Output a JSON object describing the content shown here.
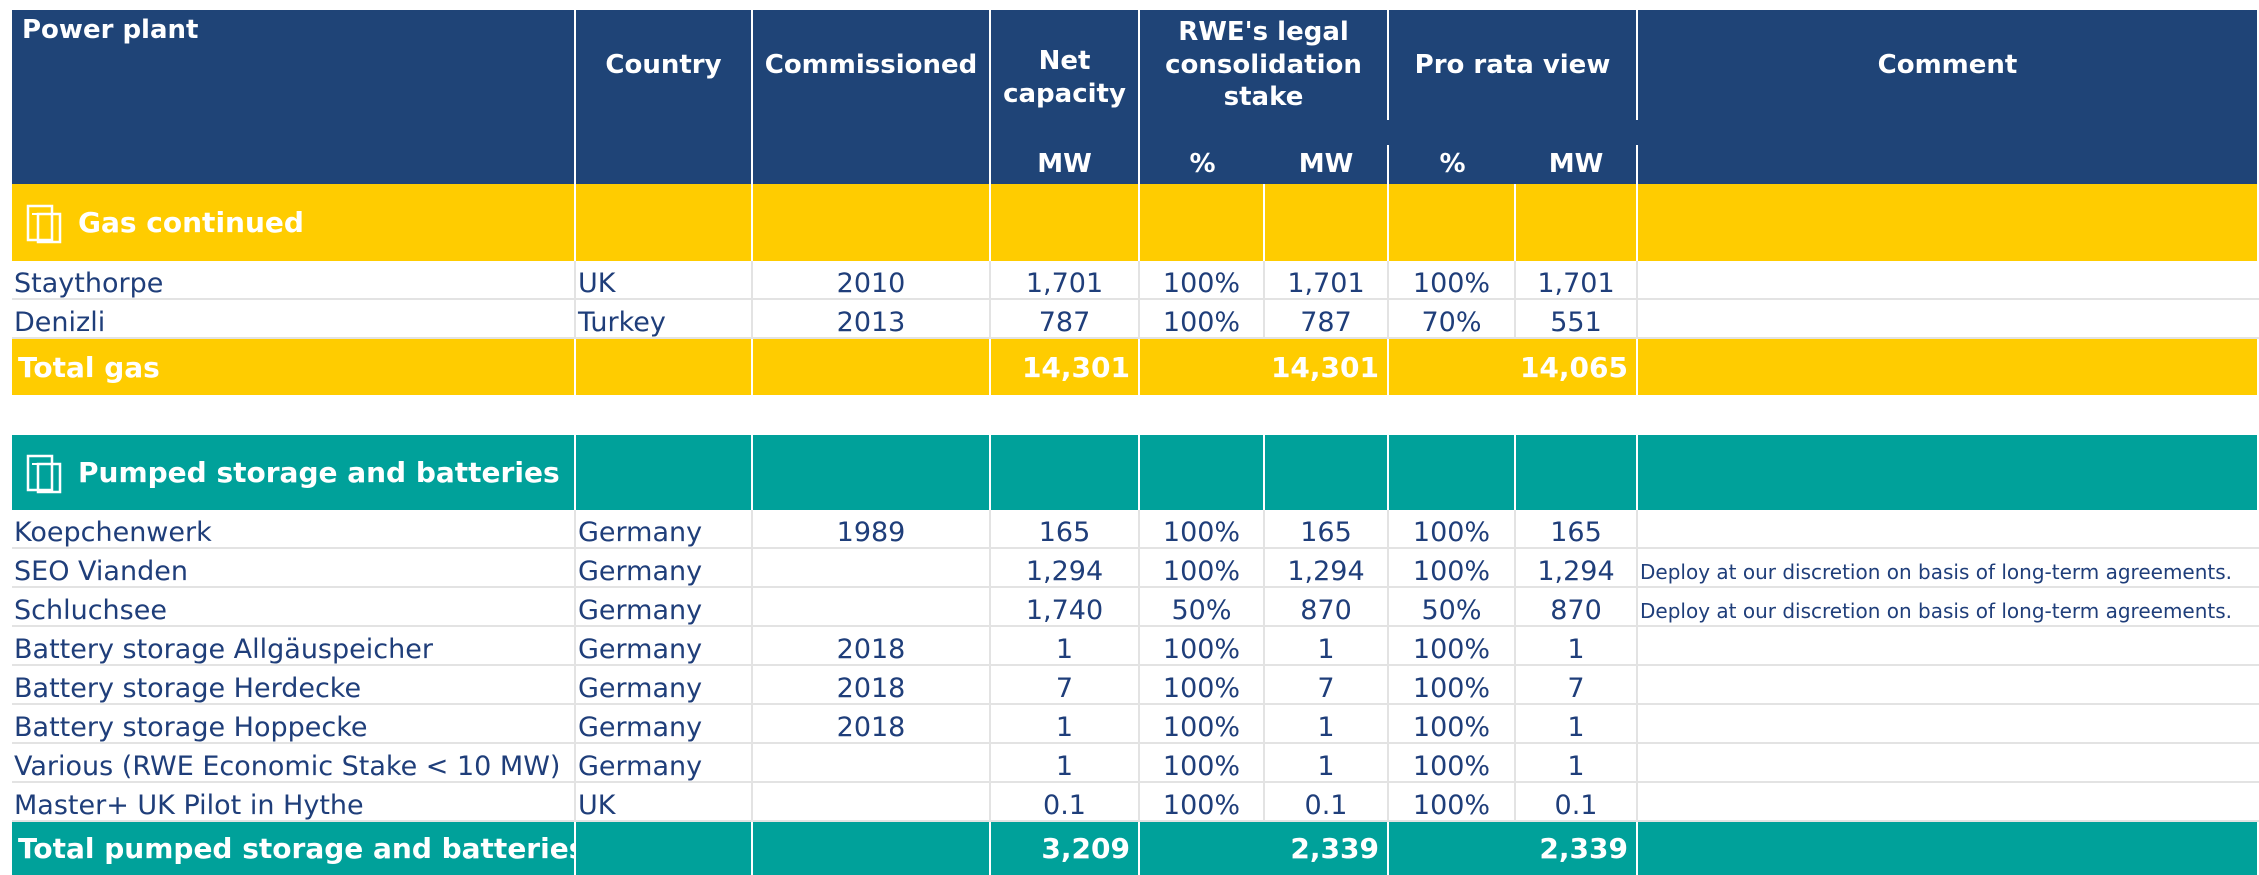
{
  "header": {
    "columns": [
      "Power plant",
      "Country",
      "Commissioned",
      "Net capacity",
      "RWE's legal consolidation stake",
      "Pro rata view",
      "Comment"
    ],
    "units": [
      "MW",
      "%",
      "MW",
      "%",
      "MW"
    ]
  },
  "sections": [
    {
      "title": "Gas continued",
      "color": "#ffcc00",
      "rows": [
        [
          "Staythorpe",
          "UK",
          "2010",
          "1,701",
          "100%",
          "1,701",
          "100%",
          "1,701",
          null
        ],
        [
          "Denizli",
          "Turkey",
          "2013",
          "787",
          "100%",
          "787",
          "70%",
          "551",
          null
        ]
      ],
      "total": {
        "label": "Total gas",
        "values": [
          "14,301",
          "14,301",
          "14,065"
        ]
      }
    },
    {
      "title": "Pumped storage and batteries",
      "color": "#00a19a",
      "rows": [
        [
          "Koepchenwerk",
          "Germany",
          "1989",
          "165",
          "100%",
          "165",
          "100%",
          "165",
          null
        ],
        [
          "SEO Vianden",
          "Germany",
          null,
          "1,294",
          "100%",
          "1,294",
          "100%",
          "1,294",
          "Deploy at our discretion on basis of long-term agreements."
        ],
        [
          "Schluchsee",
          "Germany",
          null,
          "1,740",
          "50%",
          "870",
          "50%",
          "870",
          "Deploy at our discretion on basis of long-term agreements."
        ],
        [
          "Battery storage Allgäuspeicher",
          "Germany",
          "2018",
          "1",
          "100%",
          "1",
          "100%",
          "1",
          null
        ],
        [
          "Battery storage Herdecke",
          "Germany",
          "2018",
          "7",
          "100%",
          "7",
          "100%",
          "7",
          null
        ],
        [
          "Battery storage Hoppecke",
          "Germany",
          "2018",
          "1",
          "100%",
          "1",
          "100%",
          "1",
          null
        ],
        [
          "Various (RWE Economic Stake < 10 MW)",
          "Germany",
          null,
          "1",
          "100%",
          "1",
          "100%",
          "1",
          null
        ],
        [
          "Master+ UK Pilot in Hythe",
          "UK",
          null,
          "0.1",
          "100%",
          "0.1",
          "100%",
          "0.1",
          null
        ]
      ],
      "total": {
        "label": "Total pumped storage and batteries",
        "values": [
          "3,209",
          "2,339",
          "2,339"
        ]
      }
    }
  ]
}
